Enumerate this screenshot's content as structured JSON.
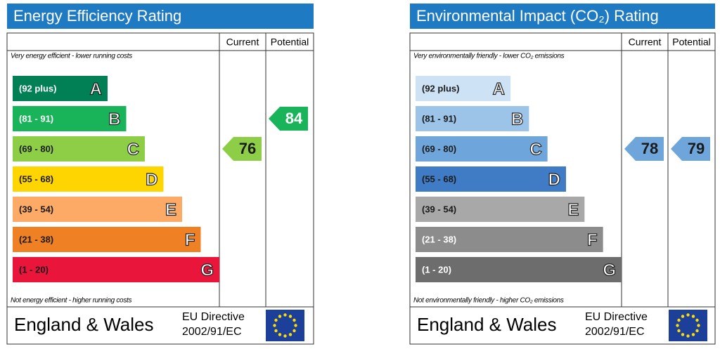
{
  "chart_data": [
    {
      "type": "rating",
      "title": "Energy Efficiency Rating",
      "top_label": "Very energy efficient - lower running costs",
      "bottom_label": "Not energy efficient - higher running costs",
      "columns": [
        "Current",
        "Potential"
      ],
      "footer": "England & Wales",
      "directive": [
        "EU Directive",
        "2002/91/EC"
      ],
      "bands": [
        {
          "label": "(92 plus)",
          "letter": "A",
          "min": 92,
          "color": "#008054",
          "text_color": "#ffffff"
        },
        {
          "label": "(81 - 91)",
          "letter": "B",
          "min": 81,
          "color": "#19b459",
          "text_color": "#ffffff"
        },
        {
          "label": "(69 - 80)",
          "letter": "C",
          "min": 69,
          "color": "#8dce46",
          "text_color": "#1a1a1a"
        },
        {
          "label": "(55 - 68)",
          "letter": "D",
          "min": 55,
          "color": "#ffd500",
          "text_color": "#1a1a1a"
        },
        {
          "label": "(39 - 54)",
          "letter": "E",
          "min": 39,
          "color": "#fcaa65",
          "text_color": "#1a1a1a"
        },
        {
          "label": "(21 - 38)",
          "letter": "F",
          "min": 21,
          "color": "#ef8023",
          "text_color": "#1a1a1a"
        },
        {
          "label": "(1 - 20)",
          "letter": "G",
          "min": 1,
          "color": "#e9153b",
          "text_color": "#1a1a1a"
        }
      ],
      "current": 76,
      "potential": 84
    },
    {
      "type": "rating",
      "title": "Environmental Impact (CO₂) Rating",
      "top_label": "Very environmentally friendly - lower CO₂ emissions",
      "bottom_label": "Not environmentally friendly - higher CO₂ emissions",
      "columns": [
        "Current",
        "Potential"
      ],
      "footer": "England & Wales",
      "directive": [
        "EU Directive",
        "2002/91/EC"
      ],
      "bands": [
        {
          "label": "(92 plus)",
          "letter": "A",
          "min": 92,
          "color": "#cde3f5",
          "text_color": "#1a1a1a"
        },
        {
          "label": "(81 - 91)",
          "letter": "B",
          "min": 81,
          "color": "#9cc4e8",
          "text_color": "#1a1a1a"
        },
        {
          "label": "(69 - 80)",
          "letter": "C",
          "min": 69,
          "color": "#6ea6dc",
          "text_color": "#1a1a1a"
        },
        {
          "label": "(55 - 68)",
          "letter": "D",
          "min": 55,
          "color": "#3f7cc5",
          "text_color": "#1a1a1a"
        },
        {
          "label": "(39 - 54)",
          "letter": "E",
          "min": 39,
          "color": "#a8a8a8",
          "text_color": "#1a1a1a"
        },
        {
          "label": "(21 - 38)",
          "letter": "F",
          "min": 21,
          "color": "#8c8c8c",
          "text_color": "#ffffff"
        },
        {
          "label": "(1 - 20)",
          "letter": "G",
          "min": 1,
          "color": "#6d6d6d",
          "text_color": "#ffffff"
        }
      ],
      "current": 78,
      "potential": 79
    }
  ]
}
